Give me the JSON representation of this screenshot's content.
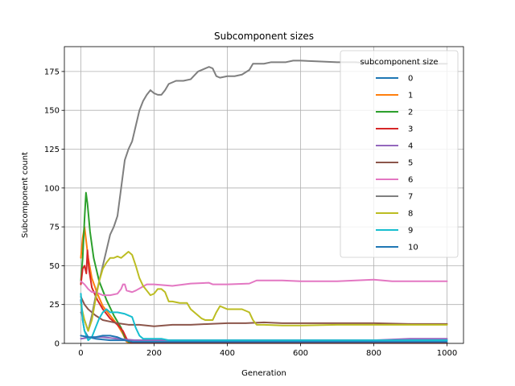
{
  "chart_data": {
    "type": "line",
    "title": "Subcomponent sizes",
    "xlabel": "Generation",
    "ylabel": "Subcomponent count",
    "xlim": [
      -45,
      1045
    ],
    "ylim": [
      0,
      191
    ],
    "xticks": [
      0,
      200,
      400,
      600,
      800,
      1000
    ],
    "yticks": [
      0,
      25,
      50,
      75,
      100,
      125,
      150,
      175
    ],
    "grid": true,
    "legend": {
      "title": "subcomponent size",
      "placement": "top-right"
    },
    "series": [
      {
        "name": "0",
        "color": "#1f77b4",
        "points": [
          [
            0,
            28
          ],
          [
            5,
            15
          ],
          [
            10,
            8
          ],
          [
            20,
            4
          ],
          [
            40,
            3
          ],
          [
            80,
            2
          ],
          [
            150,
            2
          ],
          [
            300,
            2
          ],
          [
            600,
            2
          ],
          [
            1000,
            2
          ]
        ]
      },
      {
        "name": "1",
        "color": "#ff7f0e",
        "points": [
          [
            0,
            55
          ],
          [
            5,
            68
          ],
          [
            10,
            75
          ],
          [
            15,
            65
          ],
          [
            20,
            55
          ],
          [
            30,
            42
          ],
          [
            45,
            32
          ],
          [
            60,
            24
          ],
          [
            80,
            18
          ],
          [
            100,
            12
          ],
          [
            115,
            6
          ],
          [
            125,
            1
          ],
          [
            140,
            0
          ],
          [
            1000,
            0
          ]
        ]
      },
      {
        "name": "2",
        "color": "#2ca02c",
        "points": [
          [
            0,
            40
          ],
          [
            5,
            55
          ],
          [
            10,
            80
          ],
          [
            14,
            97
          ],
          [
            18,
            90
          ],
          [
            25,
            72
          ],
          [
            35,
            55
          ],
          [
            50,
            40
          ],
          [
            70,
            28
          ],
          [
            90,
            18
          ],
          [
            110,
            10
          ],
          [
            120,
            4
          ],
          [
            130,
            1
          ],
          [
            150,
            0
          ],
          [
            1000,
            0
          ]
        ]
      },
      {
        "name": "3",
        "color": "#d62728",
        "points": [
          [
            0,
            38
          ],
          [
            5,
            48
          ],
          [
            10,
            50
          ],
          [
            15,
            45
          ],
          [
            18,
            60
          ],
          [
            22,
            48
          ],
          [
            30,
            36
          ],
          [
            45,
            28
          ],
          [
            60,
            22
          ],
          [
            80,
            16
          ],
          [
            100,
            12
          ],
          [
            115,
            8
          ],
          [
            125,
            3
          ],
          [
            140,
            0
          ],
          [
            1000,
            0
          ]
        ]
      },
      {
        "name": "4",
        "color": "#9467bd",
        "points": [
          [
            0,
            3
          ],
          [
            30,
            4
          ],
          [
            60,
            4
          ],
          [
            100,
            3
          ],
          [
            150,
            2
          ],
          [
            200,
            2
          ],
          [
            400,
            2
          ],
          [
            600,
            2
          ],
          [
            800,
            2
          ],
          [
            900,
            3
          ],
          [
            1000,
            3
          ]
        ]
      },
      {
        "name": "5",
        "color": "#8c564b",
        "points": [
          [
            0,
            30
          ],
          [
            10,
            25
          ],
          [
            20,
            22
          ],
          [
            40,
            18
          ],
          [
            60,
            15
          ],
          [
            80,
            14
          ],
          [
            100,
            13
          ],
          [
            130,
            12
          ],
          [
            160,
            12
          ],
          [
            200,
            11
          ],
          [
            250,
            12
          ],
          [
            300,
            12
          ],
          [
            350,
            12.5
          ],
          [
            400,
            13
          ],
          [
            450,
            13
          ],
          [
            500,
            13.5
          ],
          [
            550,
            13
          ],
          [
            600,
            13
          ],
          [
            700,
            13
          ],
          [
            800,
            13
          ],
          [
            900,
            12.5
          ],
          [
            1000,
            12.5
          ]
        ]
      },
      {
        "name": "6",
        "color": "#e377c2",
        "points": [
          [
            0,
            40
          ],
          [
            10,
            38
          ],
          [
            20,
            35
          ],
          [
            30,
            33
          ],
          [
            40,
            33
          ],
          [
            50,
            32
          ],
          [
            60,
            31
          ],
          [
            80,
            31
          ],
          [
            100,
            32
          ],
          [
            110,
            35
          ],
          [
            115,
            38
          ],
          [
            120,
            38
          ],
          [
            125,
            34
          ],
          [
            140,
            33
          ],
          [
            150,
            34
          ],
          [
            165,
            36
          ],
          [
            180,
            38
          ],
          [
            200,
            38
          ],
          [
            250,
            37
          ],
          [
            300,
            38.5
          ],
          [
            350,
            39
          ],
          [
            360,
            38
          ],
          [
            400,
            38
          ],
          [
            460,
            38.5
          ],
          [
            480,
            40.5
          ],
          [
            550,
            40.5
          ],
          [
            600,
            40
          ],
          [
            700,
            40
          ],
          [
            800,
            41
          ],
          [
            850,
            40
          ],
          [
            900,
            40
          ],
          [
            950,
            40
          ],
          [
            1000,
            40
          ]
        ]
      },
      {
        "name": "7",
        "color": "#7f7f7f",
        "points": [
          [
            0,
            20
          ],
          [
            10,
            15
          ],
          [
            20,
            8
          ],
          [
            30,
            18
          ],
          [
            40,
            30
          ],
          [
            50,
            40
          ],
          [
            60,
            50
          ],
          [
            70,
            60
          ],
          [
            80,
            70
          ],
          [
            90,
            75
          ],
          [
            100,
            82
          ],
          [
            110,
            100
          ],
          [
            120,
            118
          ],
          [
            130,
            125
          ],
          [
            140,
            130
          ],
          [
            150,
            140
          ],
          [
            160,
            150
          ],
          [
            170,
            156
          ],
          [
            180,
            160
          ],
          [
            190,
            163
          ],
          [
            200,
            161
          ],
          [
            210,
            160
          ],
          [
            220,
            160
          ],
          [
            230,
            163
          ],
          [
            240,
            167
          ],
          [
            260,
            169
          ],
          [
            280,
            169
          ],
          [
            300,
            170
          ],
          [
            320,
            175
          ],
          [
            340,
            177
          ],
          [
            350,
            178
          ],
          [
            360,
            177
          ],
          [
            370,
            172
          ],
          [
            380,
            171
          ],
          [
            400,
            172
          ],
          [
            420,
            172
          ],
          [
            440,
            173
          ],
          [
            460,
            176
          ],
          [
            470,
            180
          ],
          [
            480,
            180
          ],
          [
            500,
            180
          ],
          [
            520,
            181
          ],
          [
            540,
            181
          ],
          [
            560,
            181
          ],
          [
            580,
            182
          ],
          [
            600,
            182
          ],
          [
            650,
            181.5
          ],
          [
            700,
            181
          ],
          [
            750,
            181
          ],
          [
            800,
            180
          ],
          [
            900,
            180
          ],
          [
            1000,
            180
          ]
        ]
      },
      {
        "name": "8",
        "color": "#bcbd22",
        "points": [
          [
            0,
            25
          ],
          [
            10,
            15
          ],
          [
            20,
            8
          ],
          [
            30,
            15
          ],
          [
            40,
            28
          ],
          [
            50,
            40
          ],
          [
            60,
            48
          ],
          [
            70,
            52
          ],
          [
            80,
            55
          ],
          [
            90,
            55
          ],
          [
            100,
            56
          ],
          [
            110,
            55
          ],
          [
            120,
            57
          ],
          [
            130,
            59
          ],
          [
            140,
            57
          ],
          [
            150,
            50
          ],
          [
            160,
            42
          ],
          [
            170,
            37
          ],
          [
            180,
            34
          ],
          [
            190,
            31
          ],
          [
            200,
            32
          ],
          [
            210,
            35
          ],
          [
            220,
            35
          ],
          [
            230,
            33
          ],
          [
            240,
            27
          ],
          [
            250,
            27
          ],
          [
            270,
            26
          ],
          [
            290,
            26
          ],
          [
            300,
            22
          ],
          [
            310,
            20
          ],
          [
            320,
            18
          ],
          [
            330,
            16
          ],
          [
            340,
            15
          ],
          [
            350,
            15
          ],
          [
            360,
            15
          ],
          [
            370,
            20
          ],
          [
            380,
            24
          ],
          [
            390,
            23
          ],
          [
            400,
            22
          ],
          [
            440,
            22
          ],
          [
            460,
            20
          ],
          [
            470,
            15
          ],
          [
            480,
            12
          ],
          [
            500,
            12
          ],
          [
            550,
            11.5
          ],
          [
            600,
            11.5
          ],
          [
            700,
            12
          ],
          [
            800,
            12
          ],
          [
            900,
            12
          ],
          [
            1000,
            12
          ]
        ]
      },
      {
        "name": "9",
        "color": "#17becf",
        "points": [
          [
            0,
            32
          ],
          [
            5,
            15
          ],
          [
            10,
            8
          ],
          [
            20,
            2
          ],
          [
            30,
            4
          ],
          [
            40,
            10
          ],
          [
            50,
            16
          ],
          [
            60,
            20
          ],
          [
            70,
            22
          ],
          [
            80,
            20
          ],
          [
            100,
            20
          ],
          [
            120,
            19
          ],
          [
            140,
            17
          ],
          [
            150,
            10
          ],
          [
            160,
            5
          ],
          [
            170,
            3
          ],
          [
            200,
            3
          ],
          [
            220,
            3
          ],
          [
            240,
            2
          ],
          [
            300,
            2
          ],
          [
            1000,
            2
          ]
        ]
      },
      {
        "name": "10",
        "color": "#1f77b4",
        "points": [
          [
            0,
            5
          ],
          [
            20,
            4
          ],
          [
            40,
            4
          ],
          [
            60,
            5
          ],
          [
            80,
            5
          ],
          [
            100,
            4
          ],
          [
            120,
            2
          ],
          [
            140,
            1
          ],
          [
            200,
            1
          ],
          [
            400,
            1
          ],
          [
            600,
            1
          ],
          [
            800,
            1
          ],
          [
            1000,
            1
          ]
        ]
      }
    ]
  }
}
